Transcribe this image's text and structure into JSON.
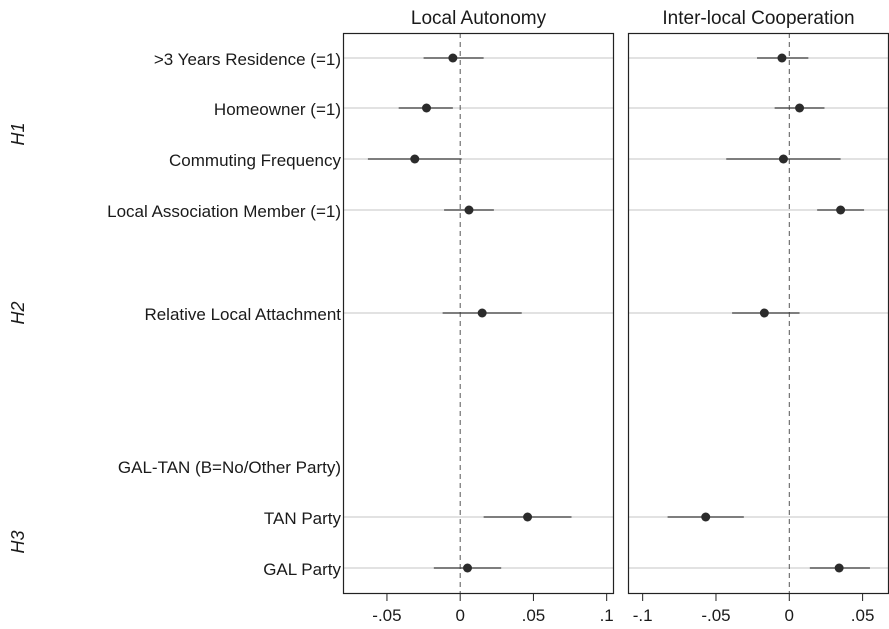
{
  "chart_data": {
    "type": "scatter",
    "row_labels": [
      ">3 Years Residence (=1)",
      "Homeowner (=1)",
      "Commuting Frequency",
      "Local Association Member (=1)",
      "Relative Local Attachment",
      "GAL-TAN (B=No/Other Party)",
      "TAN Party",
      "GAL Party"
    ],
    "group_labels": [
      "H1",
      "H2",
      "H3"
    ],
    "panels": [
      {
        "title": "Local Autonomy",
        "xlim": [
          -0.08,
          0.105
        ],
        "xticks": [
          -0.05,
          0,
          0.05,
          0.1
        ],
        "xtick_labels": [
          "-.05",
          "0",
          ".05",
          ".1"
        ],
        "estimates": [
          {
            "row": ">3 Years Residence (=1)",
            "est": -0.005,
            "lo": -0.025,
            "hi": 0.016
          },
          {
            "row": "Homeowner (=1)",
            "est": -0.023,
            "lo": -0.042,
            "hi": -0.005
          },
          {
            "row": "Commuting Frequency",
            "est": -0.031,
            "lo": -0.063,
            "hi": 0.001
          },
          {
            "row": "Local Association Member (=1)",
            "est": 0.006,
            "lo": -0.011,
            "hi": 0.023
          },
          {
            "row": "Relative Local Attachment",
            "est": 0.015,
            "lo": -0.012,
            "hi": 0.042
          },
          {
            "row": "TAN Party",
            "est": 0.046,
            "lo": 0.016,
            "hi": 0.076
          },
          {
            "row": "GAL Party",
            "est": 0.005,
            "lo": -0.018,
            "hi": 0.028
          }
        ]
      },
      {
        "title": "Inter-local Cooperation",
        "xlim": [
          -0.11,
          0.068
        ],
        "xticks": [
          -0.1,
          -0.05,
          0,
          0.05
        ],
        "xtick_labels": [
          "-.1",
          "-.05",
          "0",
          ".05"
        ],
        "estimates": [
          {
            "row": ">3 Years Residence (=1)",
            "est": -0.005,
            "lo": -0.022,
            "hi": 0.013
          },
          {
            "row": "Homeowner (=1)",
            "est": 0.007,
            "lo": -0.01,
            "hi": 0.024
          },
          {
            "row": "Commuting Frequency",
            "est": -0.004,
            "lo": -0.043,
            "hi": 0.035
          },
          {
            "row": "Local Association Member (=1)",
            "est": 0.035,
            "lo": 0.019,
            "hi": 0.051
          },
          {
            "row": "Relative Local Attachment",
            "est": -0.017,
            "lo": -0.039,
            "hi": 0.007
          },
          {
            "row": "TAN Party",
            "est": -0.057,
            "lo": -0.083,
            "hi": -0.031
          },
          {
            "row": "GAL Party",
            "est": 0.034,
            "lo": 0.014,
            "hi": 0.055
          }
        ]
      }
    ],
    "reference_line": 0,
    "grid": true,
    "legend": "none",
    "colors": {
      "point": "#2b2b2b",
      "ci": "#3c3c3c",
      "grid": "#d9d9d9",
      "refline": "#555555",
      "frame": "#222222"
    }
  }
}
